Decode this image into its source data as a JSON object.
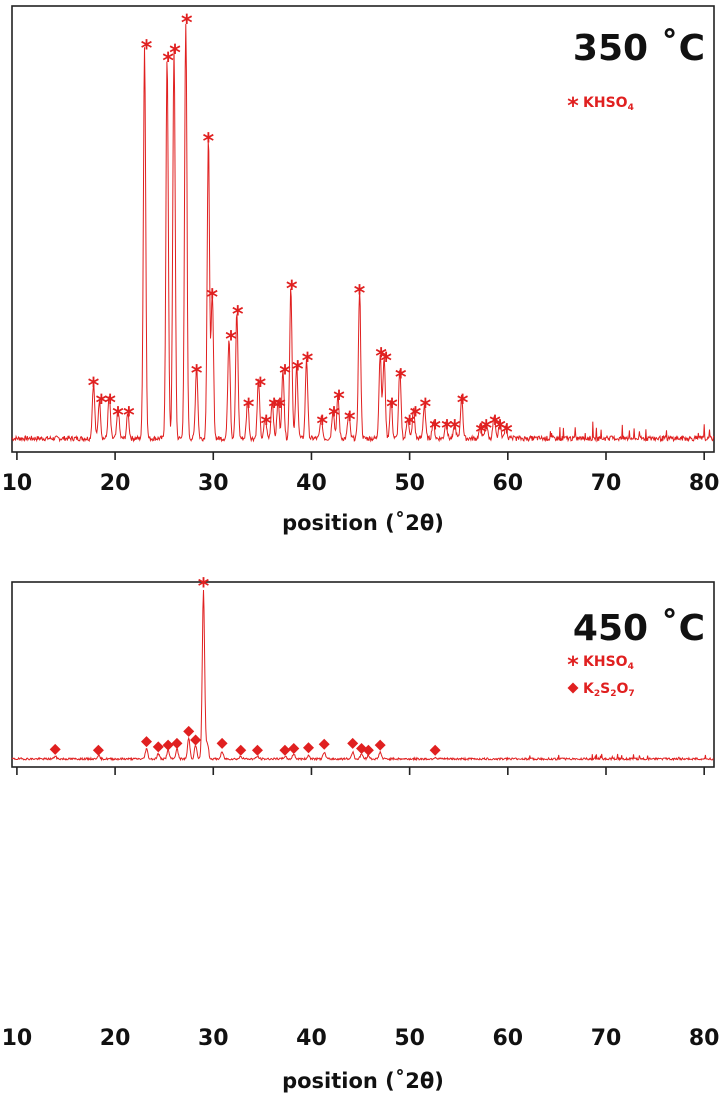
{
  "chart_data": [
    {
      "type": "line",
      "title": "350 ˚C",
      "xlabel": "position (˚2θ)",
      "xlim": [
        9.5,
        81
      ],
      "xticks": [
        "10",
        "20",
        "30",
        "40",
        "50",
        "60",
        "70",
        "80"
      ],
      "line_color": "#e02020",
      "legend": [
        {
          "symbol": "*",
          "label_parts": [
            "KHSO",
            "4"
          ]
        }
      ],
      "peaks": [
        {
          "x": 17.8,
          "y": 0.13
        },
        {
          "x": 18.4,
          "y": 0.09
        },
        {
          "x": 19.4,
          "y": 0.1
        },
        {
          "x": 20.3,
          "y": 0.07
        },
        {
          "x": 21.3,
          "y": 0.06
        },
        {
          "x": 23.0,
          "y": 0.93
        },
        {
          "x": 25.3,
          "y": 0.9
        },
        {
          "x": 26.0,
          "y": 0.92
        },
        {
          "x": 27.2,
          "y": 0.99
        },
        {
          "x": 28.3,
          "y": 0.17
        },
        {
          "x": 29.5,
          "y": 0.71
        },
        {
          "x": 29.9,
          "y": 0.34
        },
        {
          "x": 31.6,
          "y": 0.24
        },
        {
          "x": 32.4,
          "y": 0.3
        },
        {
          "x": 33.5,
          "y": 0.09
        },
        {
          "x": 34.6,
          "y": 0.14
        },
        {
          "x": 35.3,
          "y": 0.05
        },
        {
          "x": 36.0,
          "y": 0.09
        },
        {
          "x": 36.6,
          "y": 0.09
        },
        {
          "x": 37.1,
          "y": 0.16
        },
        {
          "x": 37.9,
          "y": 0.36
        },
        {
          "x": 38.5,
          "y": 0.17
        },
        {
          "x": 39.5,
          "y": 0.19
        },
        {
          "x": 41.0,
          "y": 0.05
        },
        {
          "x": 42.2,
          "y": 0.07
        },
        {
          "x": 42.7,
          "y": 0.1
        },
        {
          "x": 43.8,
          "y": 0.06
        },
        {
          "x": 44.9,
          "y": 0.35
        },
        {
          "x": 47.0,
          "y": 0.2
        },
        {
          "x": 47.4,
          "y": 0.19
        },
        {
          "x": 48.1,
          "y": 0.09
        },
        {
          "x": 49.0,
          "y": 0.16
        },
        {
          "x": 49.8,
          "y": 0.05
        },
        {
          "x": 50.4,
          "y": 0.07
        },
        {
          "x": 51.5,
          "y": 0.08
        },
        {
          "x": 52.4,
          "y": 0.04
        },
        {
          "x": 53.7,
          "y": 0.04
        },
        {
          "x": 54.6,
          "y": 0.03
        },
        {
          "x": 55.3,
          "y": 0.1
        },
        {
          "x": 57.2,
          "y": 0.03
        },
        {
          "x": 57.8,
          "y": 0.04
        },
        {
          "x": 58.6,
          "y": 0.05
        },
        {
          "x": 59.2,
          "y": 0.04
        },
        {
          "x": 59.8,
          "y": 0.03
        }
      ],
      "markers": [
        {
          "x": 17.8,
          "y": 0.13,
          "s": "*"
        },
        {
          "x": 18.6,
          "y": 0.09,
          "s": "*"
        },
        {
          "x": 19.5,
          "y": 0.09,
          "s": "*"
        },
        {
          "x": 20.3,
          "y": 0.06,
          "s": "*"
        },
        {
          "x": 21.4,
          "y": 0.06,
          "s": "*"
        },
        {
          "x": 23.2,
          "y": 0.93,
          "s": "*"
        },
        {
          "x": 25.4,
          "y": 0.9,
          "s": "*"
        },
        {
          "x": 26.1,
          "y": 0.92,
          "s": "*"
        },
        {
          "x": 27.3,
          "y": 0.99,
          "s": "*"
        },
        {
          "x": 28.3,
          "y": 0.16,
          "s": "*"
        },
        {
          "x": 29.5,
          "y": 0.71,
          "s": "*"
        },
        {
          "x": 29.9,
          "y": 0.34,
          "s": "*"
        },
        {
          "x": 31.8,
          "y": 0.24,
          "s": "*"
        },
        {
          "x": 32.5,
          "y": 0.3,
          "s": "*"
        },
        {
          "x": 33.6,
          "y": 0.08,
          "s": "*"
        },
        {
          "x": 34.8,
          "y": 0.13,
          "s": "*"
        },
        {
          "x": 35.4,
          "y": 0.04,
          "s": "*"
        },
        {
          "x": 36.2,
          "y": 0.08,
          "s": "*"
        },
        {
          "x": 36.8,
          "y": 0.08,
          "s": "*"
        },
        {
          "x": 37.3,
          "y": 0.16,
          "s": "*"
        },
        {
          "x": 38.0,
          "y": 0.36,
          "s": "*"
        },
        {
          "x": 38.6,
          "y": 0.17,
          "s": "*"
        },
        {
          "x": 39.6,
          "y": 0.19,
          "s": "*"
        },
        {
          "x": 41.1,
          "y": 0.04,
          "s": "*"
        },
        {
          "x": 42.3,
          "y": 0.06,
          "s": "*"
        },
        {
          "x": 42.8,
          "y": 0.1,
          "s": "*"
        },
        {
          "x": 43.9,
          "y": 0.05,
          "s": "*"
        },
        {
          "x": 44.9,
          "y": 0.35,
          "s": "*"
        },
        {
          "x": 47.1,
          "y": 0.2,
          "s": "*"
        },
        {
          "x": 47.6,
          "y": 0.19,
          "s": "*"
        },
        {
          "x": 48.2,
          "y": 0.08,
          "s": "*"
        },
        {
          "x": 49.1,
          "y": 0.15,
          "s": "*"
        },
        {
          "x": 50.0,
          "y": 0.04,
          "s": "*"
        },
        {
          "x": 50.6,
          "y": 0.06,
          "s": "*"
        },
        {
          "x": 51.6,
          "y": 0.08,
          "s": "*"
        },
        {
          "x": 52.6,
          "y": 0.03,
          "s": "*"
        },
        {
          "x": 53.8,
          "y": 0.03,
          "s": "*"
        },
        {
          "x": 54.6,
          "y": 0.03,
          "s": "*"
        },
        {
          "x": 55.4,
          "y": 0.09,
          "s": "*"
        },
        {
          "x": 57.3,
          "y": 0.02,
          "s": "*"
        },
        {
          "x": 57.8,
          "y": 0.03,
          "s": "*"
        },
        {
          "x": 58.7,
          "y": 0.04,
          "s": "*"
        },
        {
          "x": 59.2,
          "y": 0.03,
          "s": "*"
        },
        {
          "x": 59.9,
          "y": 0.02,
          "s": "*"
        }
      ]
    },
    {
      "type": "line",
      "title": "450 ˚C",
      "xlabel": "position (˚2θ)",
      "xlim": [
        9.5,
        81
      ],
      "xticks": [
        "10",
        "20",
        "30",
        "40",
        "50",
        "60",
        "70",
        "80"
      ],
      "line_color": "#e02020",
      "legend": [
        {
          "symbol": "*",
          "label_parts": [
            "KHSO",
            "4"
          ]
        },
        {
          "symbol": "◆",
          "label_parts": [
            "K",
            "2",
            "S",
            "2",
            "O",
            "7"
          ]
        }
      ],
      "peaks": [
        {
          "x": 13.9,
          "y": 0.015
        },
        {
          "x": 18.3,
          "y": 0.02
        },
        {
          "x": 23.2,
          "y": 0.06
        },
        {
          "x": 24.4,
          "y": 0.03
        },
        {
          "x": 25.4,
          "y": 0.05
        },
        {
          "x": 26.3,
          "y": 0.06
        },
        {
          "x": 27.5,
          "y": 0.12
        },
        {
          "x": 28.2,
          "y": 0.08
        },
        {
          "x": 29.0,
          "y": 0.99
        },
        {
          "x": 29.4,
          "y": 0.09
        },
        {
          "x": 30.9,
          "y": 0.04
        },
        {
          "x": 32.8,
          "y": 0.015
        },
        {
          "x": 34.5,
          "y": 0.015
        },
        {
          "x": 37.3,
          "y": 0.015
        },
        {
          "x": 38.2,
          "y": 0.03
        },
        {
          "x": 39.7,
          "y": 0.02
        },
        {
          "x": 41.3,
          "y": 0.04
        },
        {
          "x": 44.2,
          "y": 0.04
        },
        {
          "x": 45.1,
          "y": 0.03
        },
        {
          "x": 45.8,
          "y": 0.02
        },
        {
          "x": 47.0,
          "y": 0.04
        },
        {
          "x": 52.6,
          "y": 0.01
        }
      ],
      "markers": [
        {
          "x": 29.0,
          "y": 0.99,
          "s": "*"
        },
        {
          "x": 13.9,
          "y": 0.015,
          "s": "◆"
        },
        {
          "x": 18.3,
          "y": 0.01,
          "s": "◆"
        },
        {
          "x": 23.2,
          "y": 0.06,
          "s": "◆"
        },
        {
          "x": 24.4,
          "y": 0.03,
          "s": "◆"
        },
        {
          "x": 25.4,
          "y": 0.04,
          "s": "◆"
        },
        {
          "x": 26.3,
          "y": 0.05,
          "s": "◆"
        },
        {
          "x": 27.5,
          "y": 0.12,
          "s": "◆"
        },
        {
          "x": 28.2,
          "y": 0.07,
          "s": "◆"
        },
        {
          "x": 30.9,
          "y": 0.05,
          "s": "◆"
        },
        {
          "x": 32.8,
          "y": 0.01,
          "s": "◆"
        },
        {
          "x": 34.5,
          "y": 0.01,
          "s": "◆"
        },
        {
          "x": 37.3,
          "y": 0.01,
          "s": "◆"
        },
        {
          "x": 38.2,
          "y": 0.02,
          "s": "◆"
        },
        {
          "x": 39.7,
          "y": 0.025,
          "s": "◆"
        },
        {
          "x": 41.3,
          "y": 0.045,
          "s": "◆"
        },
        {
          "x": 44.2,
          "y": 0.05,
          "s": "◆"
        },
        {
          "x": 45.1,
          "y": 0.02,
          "s": "◆"
        },
        {
          "x": 45.8,
          "y": 0.01,
          "s": "◆"
        },
        {
          "x": 47.0,
          "y": 0.04,
          "s": "◆"
        },
        {
          "x": 52.6,
          "y": 0.01,
          "s": "◆"
        }
      ]
    }
  ]
}
